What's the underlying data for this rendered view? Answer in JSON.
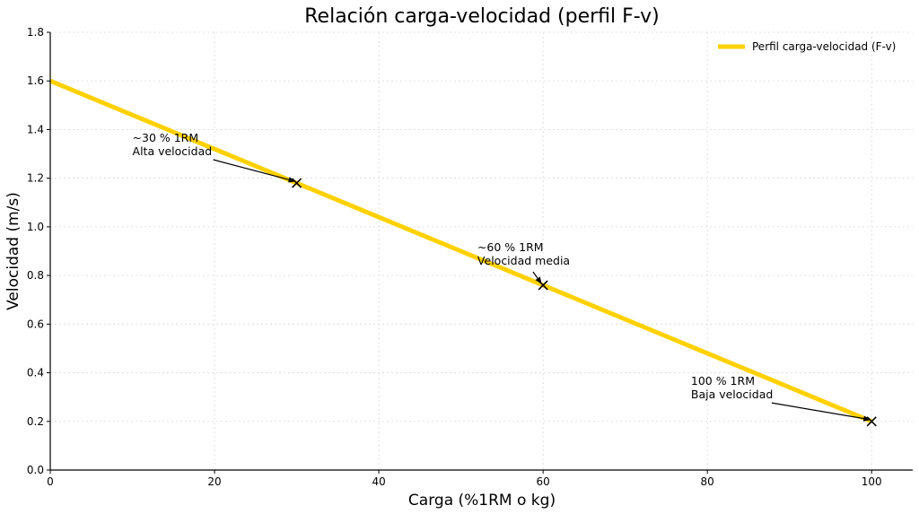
{
  "chart_data": {
    "type": "line",
    "title": "Relación carga-velocidad (perfil F-v)",
    "xlabel": "Carga (%1RM o kg)",
    "ylabel": "Velocidad (m/s)",
    "xlim": [
      0,
      105
    ],
    "ylim": [
      0,
      1.8
    ],
    "xticks": [
      0,
      20,
      40,
      60,
      80,
      100
    ],
    "yticks": [
      0.0,
      0.2,
      0.4,
      0.6,
      0.8,
      1.0,
      1.2,
      1.4,
      1.6,
      1.8
    ],
    "xtick_labels": [
      "0",
      "20",
      "40",
      "60",
      "80",
      "100"
    ],
    "ytick_labels": [
      "0.0",
      "0.2",
      "0.4",
      "0.6",
      "0.8",
      "1.0",
      "1.2",
      "1.4",
      "1.6",
      "1.8"
    ],
    "grid": true,
    "legend_position": "top-right",
    "series": [
      {
        "name": "Perfil carga-velocidad (F-v)",
        "color": "#FFD100",
        "x": [
          0,
          100
        ],
        "y": [
          1.6,
          0.2
        ]
      }
    ],
    "markers": [
      {
        "x": 30,
        "y": 1.18
      },
      {
        "x": 60,
        "y": 0.76
      },
      {
        "x": 100,
        "y": 0.2
      }
    ],
    "annotations": [
      {
        "lines": [
          "~30 % 1RM",
          "Alta velocidad"
        ],
        "x": 30,
        "y": 1.18,
        "text_x": 10,
        "text_y": 1.35
      },
      {
        "lines": [
          "~60 % 1RM",
          "Velocidad media"
        ],
        "x": 60,
        "y": 0.76,
        "text_x": 52,
        "text_y": 0.9
      },
      {
        "lines": [
          "100 % 1RM",
          "Baja velocidad"
        ],
        "x": 100,
        "y": 0.2,
        "text_x": 78,
        "text_y": 0.35
      }
    ]
  }
}
